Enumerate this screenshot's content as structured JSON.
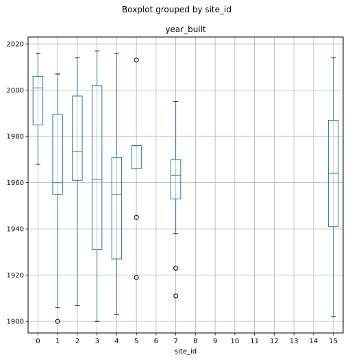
{
  "chart_data": {
    "type": "boxplot",
    "suptitle": "Boxplot grouped by site_id",
    "title": "year_built",
    "xlabel": "site_id",
    "ylabel": "",
    "ylim": [
      1895,
      2023
    ],
    "yticks": [
      1900,
      1920,
      1940,
      1960,
      1980,
      2000,
      2020
    ],
    "categories": [
      "0",
      "1",
      "2",
      "3",
      "4",
      "5",
      "6",
      "7",
      "8",
      "9",
      "10",
      "11",
      "12",
      "13",
      "14",
      "15"
    ],
    "grid": true,
    "colors": {
      "box": "#1f77b4",
      "median": "#2ca02c",
      "whisker": "#1f77b4",
      "cap": "#000000",
      "grid": "#b0b0b0",
      "flier": "#000000"
    },
    "boxes": [
      {
        "site": "0",
        "whislo": 1968,
        "q1": 1985,
        "med": 2001,
        "q3": 2006,
        "whishi": 2016,
        "fliers": []
      },
      {
        "site": "1",
        "whislo": 1906,
        "q1": 1955,
        "med": 1960,
        "q3": 1989.5,
        "whishi": 2007,
        "fliers": [
          1900
        ]
      },
      {
        "site": "2",
        "whislo": 1907,
        "q1": 1961,
        "med": 1973.5,
        "q3": 1997.5,
        "whishi": 2014,
        "fliers": []
      },
      {
        "site": "3",
        "whislo": 1900,
        "q1": 1931,
        "med": 1961.5,
        "q3": 2002,
        "whishi": 2017,
        "fliers": []
      },
      {
        "site": "4",
        "whislo": 1903,
        "q1": 1927,
        "med": 1955,
        "q3": 1971,
        "whishi": 2016,
        "fliers": []
      },
      {
        "site": "5",
        "whislo": 1966,
        "q1": 1966,
        "med": 1966,
        "q3": 1976,
        "whishi": 1976,
        "fliers": [
          2013,
          1945,
          1919
        ]
      },
      {
        "site": "7",
        "whislo": 1938,
        "q1": 1953,
        "med": 1963,
        "q3": 1970,
        "whishi": 1995,
        "fliers": [
          1923,
          1911
        ]
      },
      {
        "site": "15",
        "whislo": 1902,
        "q1": 1941,
        "med": 1964,
        "q3": 1987,
        "whishi": 2014,
        "fliers": []
      }
    ]
  }
}
